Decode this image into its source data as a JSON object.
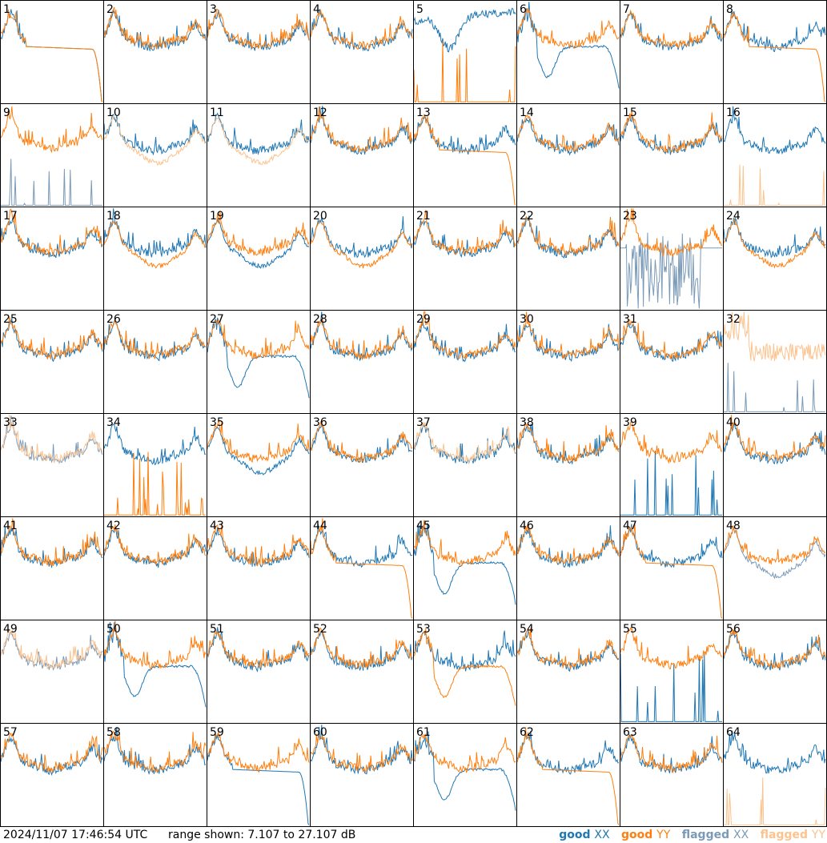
{
  "footer": {
    "timestamp": "2024/11/07 17:46:54 UTC",
    "range_text": "range shown: 7.107 to 27.107 dB"
  },
  "legend": [
    {
      "state": "good",
      "pol": "XX",
      "color": "#1f77b4"
    },
    {
      "state": "good",
      "pol": "YY",
      "color": "#ff7f0e"
    },
    {
      "state": "flagged",
      "pol": "XX",
      "color": "#7a9ab8"
    },
    {
      "state": "flagged",
      "pol": "YY",
      "color": "#fcc38e"
    }
  ],
  "colors": {
    "good_xx": "#1f77b4",
    "good_yy": "#ff7f0e",
    "flagged_xx": "#7a9ab8",
    "flagged_yy": "#fcc38e",
    "grid": "#000000"
  },
  "chart_data": {
    "type": "line",
    "layout": "8x8 small multiples",
    "x": "frequency channel (no tick labels shown)",
    "ylim_db": [
      7.107,
      27.107
    ],
    "series_names": [
      "good XX",
      "good YY",
      "flagged XX",
      "flagged YY"
    ],
    "panels": [
      {
        "id": "1",
        "xx": "good",
        "yy": "good",
        "xx_shape": "rolloff",
        "yy_shape": "rolloff"
      },
      {
        "id": "2",
        "xx": "good",
        "yy": "good",
        "xx_shape": "normal",
        "yy_shape": "normal"
      },
      {
        "id": "3",
        "xx": "good",
        "yy": "good",
        "xx_shape": "normal",
        "yy_shape": "normal"
      },
      {
        "id": "4",
        "xx": "good",
        "yy": "good",
        "xx_shape": "normal",
        "yy_shape": "normal"
      },
      {
        "id": "5",
        "xx": "good",
        "yy": "good",
        "xx_shape": "dip_high",
        "yy_shape": "spike_dead"
      },
      {
        "id": "6",
        "xx": "good",
        "yy": "good",
        "xx_shape": "dip_low",
        "yy_shape": "normal"
      },
      {
        "id": "7",
        "xx": "good",
        "yy": "good",
        "xx_shape": "normal",
        "yy_shape": "normal"
      },
      {
        "id": "8",
        "xx": "good",
        "yy": "good",
        "xx_shape": "normal",
        "yy_shape": "rolloff"
      },
      {
        "id": "9",
        "xx": "flagged",
        "yy": "good",
        "xx_shape": "dead",
        "yy_shape": "normal"
      },
      {
        "id": "10",
        "xx": "good",
        "yy": "flagged",
        "xx_shape": "normal",
        "yy_shape": "low"
      },
      {
        "id": "11",
        "xx": "good",
        "yy": "flagged",
        "xx_shape": "normal",
        "yy_shape": "low"
      },
      {
        "id": "12",
        "xx": "good",
        "yy": "good",
        "xx_shape": "normal",
        "yy_shape": "normal"
      },
      {
        "id": "13",
        "xx": "good",
        "yy": "good",
        "xx_shape": "normal",
        "yy_shape": "rolloff"
      },
      {
        "id": "14",
        "xx": "good",
        "yy": "good",
        "xx_shape": "normal",
        "yy_shape": "normal"
      },
      {
        "id": "15",
        "xx": "good",
        "yy": "good",
        "xx_shape": "normal",
        "yy_shape": "normal"
      },
      {
        "id": "16",
        "xx": "good",
        "yy": "flagged",
        "xx_shape": "normal",
        "yy_shape": "dead"
      },
      {
        "id": "17",
        "xx": "good",
        "yy": "good",
        "xx_shape": "normal",
        "yy_shape": "normal"
      },
      {
        "id": "18",
        "xx": "good",
        "yy": "good",
        "xx_shape": "normal",
        "yy_shape": "low"
      },
      {
        "id": "19",
        "xx": "good",
        "yy": "good",
        "xx_shape": "low",
        "yy_shape": "normal"
      },
      {
        "id": "20",
        "xx": "good",
        "yy": "good",
        "xx_shape": "normal",
        "yy_shape": "low"
      },
      {
        "id": "21",
        "xx": "good",
        "yy": "good",
        "xx_shape": "normal",
        "yy_shape": "normal"
      },
      {
        "id": "22",
        "xx": "good",
        "yy": "good",
        "xx_shape": "normal",
        "yy_shape": "normal"
      },
      {
        "id": "23",
        "xx": "flagged",
        "yy": "good",
        "xx_shape": "noisy_dead",
        "yy_shape": "normal"
      },
      {
        "id": "24",
        "xx": "good",
        "yy": "good",
        "xx_shape": "normal",
        "yy_shape": "low"
      },
      {
        "id": "25",
        "xx": "good",
        "yy": "good",
        "xx_shape": "normal",
        "yy_shape": "normal"
      },
      {
        "id": "26",
        "xx": "good",
        "yy": "good",
        "xx_shape": "normal",
        "yy_shape": "normal"
      },
      {
        "id": "27",
        "xx": "good",
        "yy": "good",
        "xx_shape": "dip_low",
        "yy_shape": "normal"
      },
      {
        "id": "28",
        "xx": "good",
        "yy": "good",
        "xx_shape": "normal",
        "yy_shape": "normal"
      },
      {
        "id": "29",
        "xx": "good",
        "yy": "good",
        "xx_shape": "normal",
        "yy_shape": "normal"
      },
      {
        "id": "30",
        "xx": "good",
        "yy": "good",
        "xx_shape": "normal",
        "yy_shape": "normal"
      },
      {
        "id": "31",
        "xx": "good",
        "yy": "good",
        "xx_shape": "normal",
        "yy_shape": "normal"
      },
      {
        "id": "32",
        "xx": "flagged",
        "yy": "flagged",
        "xx_shape": "dead",
        "yy_shape": "noisy_high"
      },
      {
        "id": "33",
        "xx": "flagged",
        "yy": "flagged",
        "xx_shape": "normal",
        "yy_shape": "normal"
      },
      {
        "id": "34",
        "xx": "good",
        "yy": "good",
        "xx_shape": "normal",
        "yy_shape": "spike_dead"
      },
      {
        "id": "35",
        "xx": "good",
        "yy": "good",
        "xx_shape": "low",
        "yy_shape": "normal"
      },
      {
        "id": "36",
        "xx": "good",
        "yy": "good",
        "xx_shape": "normal",
        "yy_shape": "normal"
      },
      {
        "id": "37",
        "xx": "good",
        "yy": "flagged",
        "xx_shape": "normal",
        "yy_shape": "normal"
      },
      {
        "id": "38",
        "xx": "good",
        "yy": "good",
        "xx_shape": "normal",
        "yy_shape": "normal"
      },
      {
        "id": "39",
        "xx": "good",
        "yy": "good",
        "xx_shape": "spike_dead",
        "yy_shape": "normal"
      },
      {
        "id": "40",
        "xx": "good",
        "yy": "good",
        "xx_shape": "normal",
        "yy_shape": "normal"
      },
      {
        "id": "41",
        "xx": "good",
        "yy": "good",
        "xx_shape": "normal",
        "yy_shape": "normal"
      },
      {
        "id": "42",
        "xx": "good",
        "yy": "good",
        "xx_shape": "normal",
        "yy_shape": "normal"
      },
      {
        "id": "43",
        "xx": "good",
        "yy": "good",
        "xx_shape": "normal",
        "yy_shape": "normal"
      },
      {
        "id": "44",
        "xx": "good",
        "yy": "good",
        "xx_shape": "normal",
        "yy_shape": "rolloff"
      },
      {
        "id": "45",
        "xx": "good",
        "yy": "good",
        "xx_shape": "dip_low",
        "yy_shape": "normal"
      },
      {
        "id": "46",
        "xx": "good",
        "yy": "good",
        "xx_shape": "normal",
        "yy_shape": "normal"
      },
      {
        "id": "47",
        "xx": "good",
        "yy": "good",
        "xx_shape": "normal",
        "yy_shape": "rolloff"
      },
      {
        "id": "48",
        "xx": "flagged",
        "yy": "good",
        "xx_shape": "low",
        "yy_shape": "normal"
      },
      {
        "id": "49",
        "xx": "flagged",
        "yy": "flagged",
        "xx_shape": "normal",
        "yy_shape": "normal"
      },
      {
        "id": "50",
        "xx": "good",
        "yy": "good",
        "xx_shape": "dip_low",
        "yy_shape": "normal"
      },
      {
        "id": "51",
        "xx": "good",
        "yy": "good",
        "xx_shape": "normal",
        "yy_shape": "normal"
      },
      {
        "id": "52",
        "xx": "good",
        "yy": "good",
        "xx_shape": "normal",
        "yy_shape": "normal"
      },
      {
        "id": "53",
        "xx": "good",
        "yy": "good",
        "xx_shape": "normal",
        "yy_shape": "dip_low"
      },
      {
        "id": "54",
        "xx": "good",
        "yy": "good",
        "xx_shape": "normal",
        "yy_shape": "normal"
      },
      {
        "id": "55",
        "xx": "good",
        "yy": "good",
        "xx_shape": "spike_dead",
        "yy_shape": "normal"
      },
      {
        "id": "56",
        "xx": "good",
        "yy": "good",
        "xx_shape": "normal",
        "yy_shape": "normal"
      },
      {
        "id": "57",
        "xx": "good",
        "yy": "good",
        "xx_shape": "normal",
        "yy_shape": "normal"
      },
      {
        "id": "58",
        "xx": "good",
        "yy": "good",
        "xx_shape": "normal",
        "yy_shape": "normal"
      },
      {
        "id": "59",
        "xx": "good",
        "yy": "good",
        "xx_shape": "rolloff",
        "yy_shape": "normal"
      },
      {
        "id": "60",
        "xx": "good",
        "yy": "good",
        "xx_shape": "normal",
        "yy_shape": "normal"
      },
      {
        "id": "61",
        "xx": "good",
        "yy": "good",
        "xx_shape": "dip_low",
        "yy_shape": "normal"
      },
      {
        "id": "62",
        "xx": "good",
        "yy": "good",
        "xx_shape": "normal",
        "yy_shape": "rolloff"
      },
      {
        "id": "63",
        "xx": "good",
        "yy": "good",
        "xx_shape": "normal",
        "yy_shape": "normal"
      },
      {
        "id": "64",
        "xx": "good",
        "yy": "flagged",
        "xx_shape": "normal",
        "yy_shape": "dead"
      }
    ]
  }
}
